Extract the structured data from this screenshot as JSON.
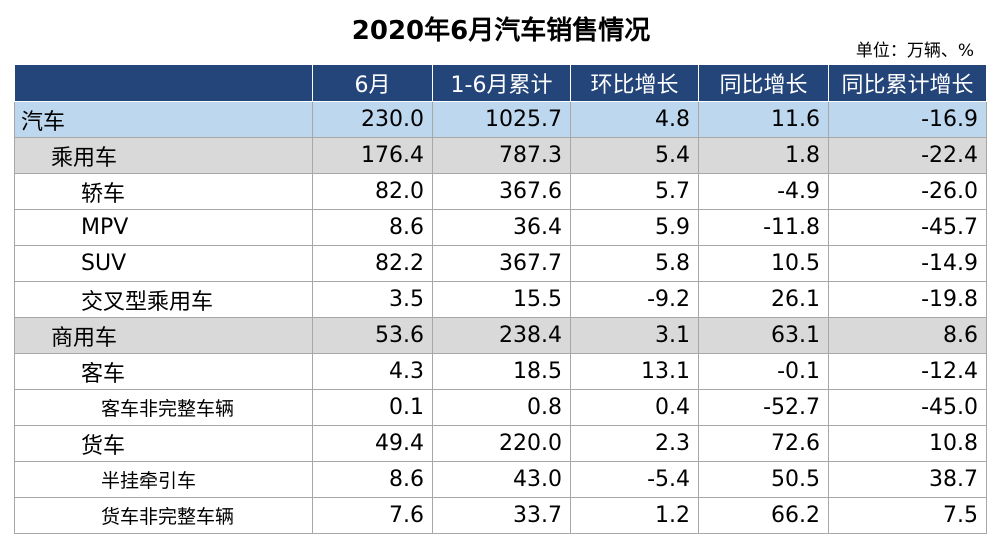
{
  "title": "2020年6月汽车销售情况",
  "unit": "单位：万辆、%",
  "headers": [
    "",
    "6月",
    "1-6月累计",
    "环比增长",
    "同比增长",
    "同比累计增长"
  ],
  "rows": [
    {
      "name": "汽车",
      "level": 0,
      "values": [
        "230.0",
        "1025.7",
        "4.8",
        "11.6",
        "-16.9"
      ]
    },
    {
      "name": "乘用车",
      "level": 1,
      "values": [
        "176.4",
        "787.3",
        "5.4",
        "1.8",
        "-22.4"
      ]
    },
    {
      "name": "轿车",
      "level": 2,
      "values": [
        "82.0",
        "367.6",
        "5.7",
        "-4.9",
        "-26.0"
      ]
    },
    {
      "name": "MPV",
      "level": 2,
      "values": [
        "8.6",
        "36.4",
        "5.9",
        "-11.8",
        "-45.7"
      ]
    },
    {
      "name": "SUV",
      "level": 2,
      "values": [
        "82.2",
        "367.7",
        "5.8",
        "10.5",
        "-14.9"
      ]
    },
    {
      "name": "交叉型乘用车",
      "level": 2,
      "values": [
        "3.5",
        "15.5",
        "-9.2",
        "26.1",
        "-19.8"
      ]
    },
    {
      "name": "商用车",
      "level": 1,
      "values": [
        "53.6",
        "238.4",
        "3.1",
        "63.1",
        "8.6"
      ]
    },
    {
      "name": "客车",
      "level": 2,
      "values": [
        "4.3",
        "18.5",
        "13.1",
        "-0.1",
        "-12.4"
      ]
    },
    {
      "name": "客车非完整车辆",
      "level": 3,
      "values": [
        "0.1",
        "0.8",
        "0.4",
        "-52.7",
        "-45.0"
      ]
    },
    {
      "name": "货车",
      "level": 2,
      "values": [
        "49.4",
        "220.0",
        "2.3",
        "72.6",
        "10.8"
      ]
    },
    {
      "name": "半挂牵引车",
      "level": 3,
      "values": [
        "8.6",
        "43.0",
        "-5.4",
        "50.5",
        "38.7"
      ]
    },
    {
      "name": "货车非完整车辆",
      "level": 3,
      "values": [
        "7.6",
        "33.7",
        "1.2",
        "66.2",
        "7.5"
      ]
    }
  ],
  "colors": {
    "header_bg": "#24457a",
    "total_row_bg": "#bdd7ee",
    "category_row_bg": "#d9d9d9"
  }
}
